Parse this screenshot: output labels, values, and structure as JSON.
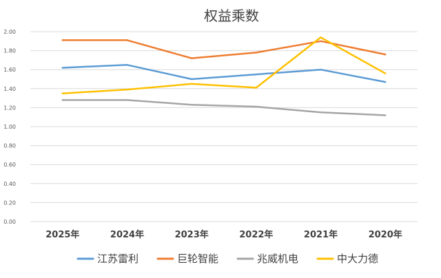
{
  "chart_data": {
    "type": "line",
    "title": "权益乘数",
    "categories": [
      "2025年",
      "2024年",
      "2023年",
      "2022年",
      "2021年",
      "2020年"
    ],
    "ylim": [
      0,
      2.0
    ],
    "yticks": [
      "0.00",
      "0.20",
      "0.40",
      "0.60",
      "0.80",
      "1.00",
      "1.20",
      "1.40",
      "1.60",
      "1.80",
      "2.00"
    ],
    "grid": true,
    "legend_position": "bottom",
    "series": [
      {
        "name": "江苏雷利",
        "color": "#5b9bd5",
        "values": [
          1.62,
          1.65,
          1.5,
          1.55,
          1.6,
          1.47
        ]
      },
      {
        "name": "巨轮智能",
        "color": "#ed7d31",
        "values": [
          1.91,
          1.91,
          1.72,
          1.78,
          1.9,
          1.76
        ]
      },
      {
        "name": "兆威机电",
        "color": "#a5a5a5",
        "values": [
          1.28,
          1.28,
          1.23,
          1.21,
          1.15,
          1.12
        ]
      },
      {
        "name": "中大力德",
        "color": "#ffc000",
        "values": [
          1.35,
          1.39,
          1.45,
          1.41,
          1.94,
          1.56
        ]
      }
    ]
  }
}
